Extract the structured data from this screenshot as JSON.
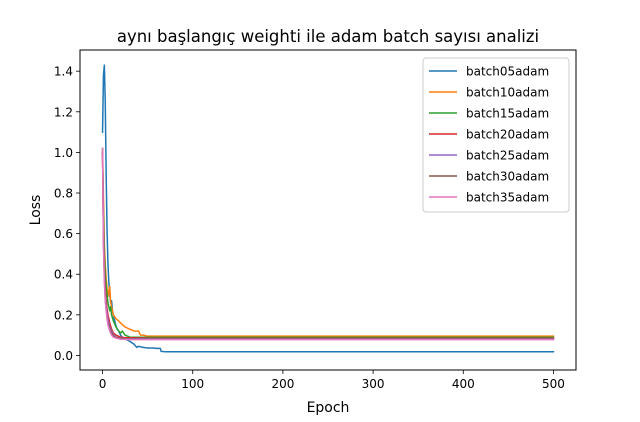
{
  "chart_data": {
    "type": "line",
    "title": "aynı başlangıç weighti ile adam batch sayısı analizi",
    "xlabel": "Epoch",
    "ylabel": "Loss",
    "xlim": [
      -25,
      525
    ],
    "ylim": [
      -0.0716,
      1.5043
    ],
    "xticks": [
      0,
      100,
      200,
      300,
      400,
      500
    ],
    "xtick_labels": [
      "0",
      "100",
      "200",
      "300",
      "400",
      "500"
    ],
    "yticks": [
      0.0,
      0.2,
      0.4,
      0.6,
      0.8,
      1.0,
      1.2,
      1.4
    ],
    "ytick_labels": [
      "0.0",
      "0.2",
      "0.4",
      "0.6",
      "0.8",
      "1.0",
      "1.2",
      "1.4"
    ],
    "grid": false,
    "legend_position": "top-right",
    "series": [
      {
        "name": "batch05adam",
        "color": "#1f77b4",
        "x": [
          0,
          1,
          2,
          3,
          4,
          5,
          6,
          7,
          8,
          9,
          10,
          11,
          12,
          14,
          16,
          18,
          20,
          22,
          25,
          28,
          30,
          35,
          38,
          40,
          45,
          50,
          55,
          60,
          64,
          65,
          70,
          80,
          100,
          150,
          200,
          250,
          300,
          350,
          400,
          450,
          500
        ],
        "y": [
          1.1,
          1.38,
          1.43,
          1.25,
          0.9,
          0.62,
          0.45,
          0.36,
          0.3,
          0.26,
          0.27,
          0.22,
          0.2,
          0.16,
          0.13,
          0.12,
          0.1,
          0.09,
          0.08,
          0.075,
          0.07,
          0.055,
          0.04,
          0.045,
          0.04,
          0.037,
          0.037,
          0.035,
          0.035,
          0.02,
          0.018,
          0.018,
          0.018,
          0.018,
          0.018,
          0.018,
          0.018,
          0.018,
          0.018,
          0.018,
          0.018
        ]
      },
      {
        "name": "batch10adam",
        "color": "#ff7f0e",
        "x": [
          0,
          1,
          2,
          3,
          4,
          5,
          6,
          7,
          8,
          9,
          10,
          12,
          15,
          18,
          20,
          25,
          30,
          35,
          40,
          42,
          45,
          50,
          60,
          100,
          200,
          300,
          400,
          500
        ],
        "y": [
          1.02,
          0.78,
          0.55,
          0.45,
          0.38,
          0.33,
          0.29,
          0.32,
          0.34,
          0.26,
          0.24,
          0.2,
          0.18,
          0.17,
          0.16,
          0.14,
          0.13,
          0.12,
          0.12,
          0.1,
          0.1,
          0.095,
          0.095,
          0.095,
          0.095,
          0.095,
          0.095,
          0.095
        ]
      },
      {
        "name": "batch15adam",
        "color": "#2ca02c",
        "x": [
          0,
          1,
          2,
          3,
          4,
          5,
          6,
          7,
          8,
          9,
          10,
          12,
          15,
          18,
          20,
          22,
          25,
          28,
          30,
          35,
          40,
          50,
          100,
          200,
          300,
          400,
          500
        ],
        "y": [
          1.02,
          0.7,
          0.5,
          0.4,
          0.34,
          0.3,
          0.26,
          0.24,
          0.22,
          0.24,
          0.2,
          0.17,
          0.14,
          0.12,
          0.11,
          0.12,
          0.1,
          0.095,
          0.09,
          0.09,
          0.09,
          0.09,
          0.09,
          0.09,
          0.09,
          0.09,
          0.09
        ]
      },
      {
        "name": "batch20adam",
        "color": "#d62728",
        "x": [
          0,
          1,
          2,
          3,
          4,
          5,
          6,
          8,
          10,
          12,
          15,
          20,
          25,
          30,
          40,
          50,
          100,
          200,
          300,
          400,
          500
        ],
        "y": [
          1.0,
          0.6,
          0.42,
          0.33,
          0.27,
          0.23,
          0.2,
          0.16,
          0.13,
          0.11,
          0.1,
          0.09,
          0.088,
          0.087,
          0.086,
          0.085,
          0.085,
          0.085,
          0.085,
          0.085,
          0.085
        ]
      },
      {
        "name": "batch25adam",
        "color": "#9467bd",
        "x": [
          0,
          1,
          2,
          3,
          4,
          5,
          6,
          8,
          10,
          12,
          15,
          20,
          25,
          30,
          40,
          50,
          100,
          200,
          300,
          400,
          500
        ],
        "y": [
          1.0,
          0.58,
          0.4,
          0.3,
          0.25,
          0.21,
          0.18,
          0.14,
          0.12,
          0.1,
          0.09,
          0.085,
          0.083,
          0.082,
          0.082,
          0.082,
          0.082,
          0.082,
          0.082,
          0.082,
          0.082
        ]
      },
      {
        "name": "batch30adam",
        "color": "#8c564b",
        "x": [
          0,
          1,
          2,
          3,
          4,
          5,
          6,
          8,
          10,
          12,
          15,
          20,
          25,
          30,
          40,
          50,
          100,
          200,
          300,
          400,
          500
        ],
        "y": [
          1.0,
          0.56,
          0.38,
          0.28,
          0.23,
          0.19,
          0.16,
          0.13,
          0.11,
          0.095,
          0.088,
          0.083,
          0.081,
          0.08,
          0.08,
          0.08,
          0.08,
          0.08,
          0.08,
          0.08,
          0.08
        ]
      },
      {
        "name": "batch35adam",
        "color": "#e377c2",
        "x": [
          0,
          1,
          2,
          3,
          4,
          5,
          6,
          8,
          10,
          12,
          15,
          20,
          25,
          30,
          40,
          50,
          100,
          200,
          300,
          400,
          500
        ],
        "y": [
          1.02,
          0.55,
          0.36,
          0.27,
          0.22,
          0.18,
          0.15,
          0.12,
          0.1,
          0.09,
          0.085,
          0.08,
          0.079,
          0.078,
          0.078,
          0.078,
          0.078,
          0.078,
          0.078,
          0.078,
          0.078
        ]
      }
    ]
  }
}
